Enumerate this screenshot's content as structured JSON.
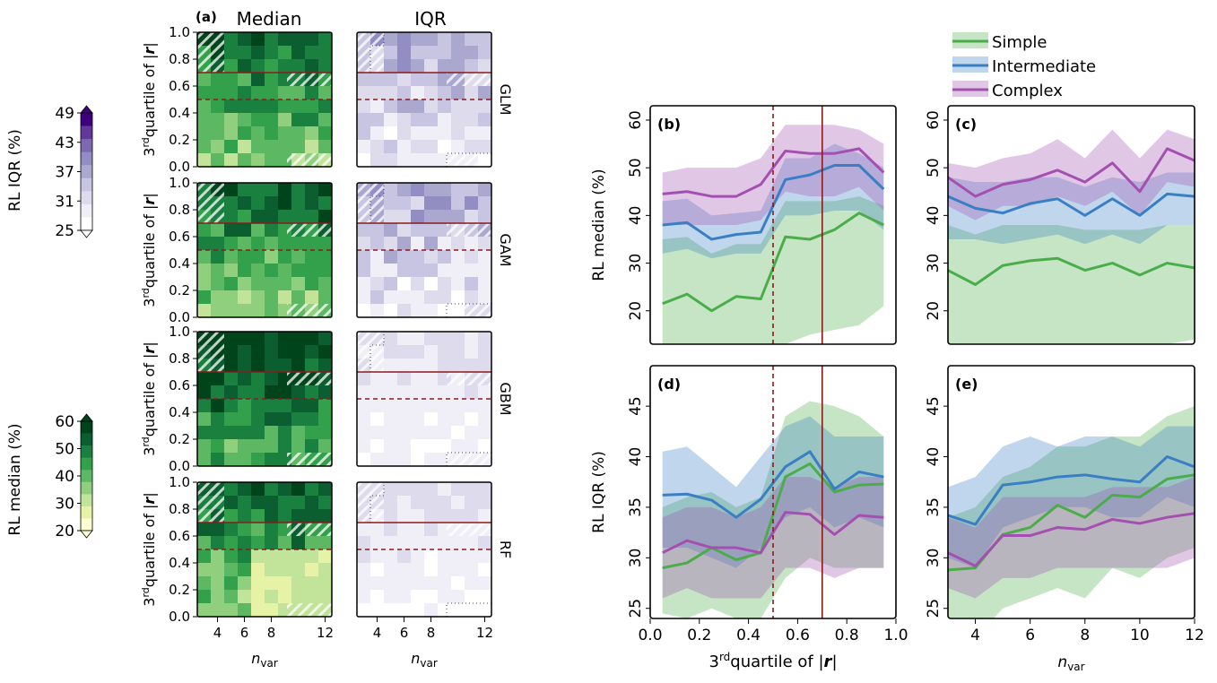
{
  "colors": {
    "simple": "#4aad4a",
    "intermediate": "#3a7fc4",
    "complex": "#a350b0",
    "threshold": "#8b1a1a",
    "median_scale": [
      "#fefed2",
      "#e6f3a6",
      "#c2e39a",
      "#8fcf7e",
      "#5cb863",
      "#33a04b",
      "#1a8040",
      "#0b5e2f",
      "#00441b"
    ],
    "iqr_scale": [
      "#ffffff",
      "#f0eff7",
      "#dedcec",
      "#c7c5e1",
      "#aba8d0",
      "#928dc2",
      "#7b6ab0",
      "#62389a",
      "#3f007d"
    ]
  },
  "heatmaps": {
    "panel_label": "(a)",
    "col_titles": [
      "Median",
      "IQR"
    ],
    "ylabel_sup": "rd",
    "ylabel_pre": "3",
    "ylabel_main": "quartile of |",
    "ylabel_r": "r",
    "ylabel_end": "|",
    "xlabel": "n",
    "xlabel_sub": "var",
    "xticks": [
      "4",
      "6",
      "8",
      "12"
    ],
    "yticks": [
      "0.0",
      "0.2",
      "0.4",
      "0.6",
      "0.8",
      "1.0"
    ],
    "models": [
      "GLM",
      "GAM",
      "GBM",
      "RF"
    ],
    "solid_line_y": 0.7,
    "dashed_line_y": 0.5
  },
  "colorbars": {
    "iqr": {
      "label": "RL IQR (%)",
      "ticks": [
        "49",
        "43",
        "37",
        "31",
        "25"
      ]
    },
    "median": {
      "label": "RL median (%)",
      "ticks": [
        "60",
        "50",
        "40",
        "30",
        "20"
      ]
    }
  },
  "legend": {
    "entries": [
      "Simple",
      "Intermediate",
      "Complex"
    ],
    "placement": "top-center"
  },
  "chart_data": [
    {
      "panel": "(b)",
      "type": "area",
      "xlim": [
        0,
        1.0
      ],
      "ylim": [
        13,
        63
      ],
      "yticks": [
        "20",
        "30",
        "40",
        "50",
        "60"
      ],
      "ylabel": "RL median (%)",
      "vlines": {
        "dashed": 0.5,
        "solid": 0.7
      },
      "x": [
        0.05,
        0.15,
        0.25,
        0.35,
        0.45,
        0.55,
        0.65,
        0.75,
        0.85,
        0.95
      ],
      "series": [
        {
          "name": "Simple",
          "values": [
            21.5,
            23.5,
            20,
            23,
            22.5,
            35.5,
            35,
            37,
            40.5,
            38
          ],
          "lower": [
            10,
            10,
            10,
            10,
            10,
            13,
            15,
            16,
            17,
            21
          ],
          "upper": [
            35,
            35.5,
            32,
            34,
            34,
            43,
            43,
            43,
            44,
            42
          ]
        },
        {
          "name": "Intermediate",
          "values": [
            38,
            38.5,
            35,
            36,
            36.5,
            47.5,
            48.5,
            50.5,
            50.5,
            45.5
          ],
          "lower": [
            32,
            33,
            31,
            32,
            32,
            40,
            40,
            41,
            41,
            37
          ],
          "upper": [
            43,
            43.5,
            40,
            40.5,
            41,
            52,
            52,
            55,
            53,
            50
          ]
        },
        {
          "name": "Complex",
          "values": [
            44.5,
            45,
            44,
            44,
            46.5,
            53.5,
            53,
            53,
            54,
            49
          ],
          "lower": [
            38,
            38,
            38,
            38,
            39,
            45,
            44,
            44,
            46,
            41
          ],
          "upper": [
            49,
            50,
            50,
            50,
            52,
            59,
            59,
            59,
            58,
            55
          ]
        }
      ]
    },
    {
      "panel": "(c)",
      "type": "area",
      "xlim": [
        3,
        12
      ],
      "ylim": [
        13,
        63
      ],
      "yticks": [
        "20",
        "30",
        "40",
        "50",
        "60"
      ],
      "x": [
        3,
        4,
        5,
        6,
        7,
        8,
        9,
        10,
        11,
        12
      ],
      "series": [
        {
          "name": "Simple",
          "values": [
            28.5,
            25.5,
            29.5,
            30.5,
            31,
            28.5,
            30,
            27.5,
            30,
            29
          ],
          "lower": [
            10,
            10,
            10,
            10,
            10,
            10,
            10,
            10,
            13,
            14
          ],
          "upper": [
            38,
            36,
            38,
            38,
            38,
            37,
            37,
            37,
            38,
            38
          ]
        },
        {
          "name": "Intermediate",
          "values": [
            44,
            41.5,
            40.5,
            42.5,
            43.5,
            40,
            43.5,
            40,
            44.5,
            44
          ],
          "lower": [
            35,
            35,
            34,
            35,
            36,
            34,
            36,
            34,
            38,
            38
          ],
          "upper": [
            48,
            47,
            47,
            48,
            48,
            46,
            48,
            47,
            49,
            49
          ]
        },
        {
          "name": "Complex",
          "values": [
            48,
            44,
            46.5,
            47.5,
            49.5,
            47,
            51,
            45,
            54,
            51.5
          ],
          "lower": [
            42,
            39,
            42,
            42,
            44,
            42,
            45,
            40,
            47,
            46
          ],
          "upper": [
            51,
            50,
            52,
            53,
            56,
            52,
            58,
            52,
            58,
            56
          ]
        }
      ]
    },
    {
      "panel": "(d)",
      "type": "area",
      "xlim": [
        0,
        1.0
      ],
      "ylim": [
        24,
        49
      ],
      "yticks": [
        "25",
        "30",
        "35",
        "40",
        "45"
      ],
      "xticks": [
        "0.0",
        "0.2",
        "0.4",
        "0.6",
        "0.8",
        "1.0"
      ],
      "ylabel": "RL IQR (%)",
      "xlabel_pre": "3",
      "xlabel_sup": "rd",
      "xlabel_main": "quartile of  |",
      "xlabel_r": "r",
      "xlabel_end": "|",
      "vlines": {
        "dashed": 0.5,
        "solid": 0.7
      },
      "x": [
        0.05,
        0.15,
        0.25,
        0.35,
        0.45,
        0.55,
        0.65,
        0.75,
        0.85,
        0.95
      ],
      "series": [
        {
          "name": "Simple",
          "values": [
            29,
            29.5,
            31,
            29.8,
            30.5,
            38,
            39.3,
            36.5,
            37.2,
            37.3
          ],
          "lower": [
            24.5,
            24,
            25,
            24,
            24,
            28,
            30,
            29,
            29,
            29
          ],
          "upper": [
            35,
            36,
            36.5,
            35,
            36,
            44,
            45.5,
            45,
            44,
            42
          ]
        },
        {
          "name": "Intermediate",
          "values": [
            36.2,
            36.3,
            35.7,
            34,
            35.8,
            39,
            40.5,
            36.8,
            38.5,
            38
          ],
          "lower": [
            31,
            31,
            30,
            29,
            31,
            34,
            35,
            33,
            34,
            33
          ],
          "upper": [
            40.5,
            41,
            39,
            37,
            40,
            43,
            44,
            42,
            42,
            42
          ]
        },
        {
          "name": "Complex",
          "values": [
            30.5,
            31.7,
            31,
            31,
            30.5,
            34.5,
            34.3,
            32.3,
            34.2,
            34
          ],
          "lower": [
            26,
            27,
            26,
            26,
            26,
            29,
            29,
            28,
            29,
            29
          ],
          "upper": [
            34,
            35,
            35,
            34,
            35,
            38,
            38,
            37,
            38,
            38
          ]
        }
      ]
    },
    {
      "panel": "(e)",
      "type": "area",
      "xlim": [
        3,
        12
      ],
      "ylim": [
        24,
        49
      ],
      "yticks": [
        "25",
        "30",
        "35",
        "40",
        "45"
      ],
      "xticks": [
        "4",
        "6",
        "8",
        "10",
        "12"
      ],
      "xlabel": "n",
      "xlabel_sub": "var",
      "x": [
        3,
        4,
        5,
        6,
        7,
        8,
        9,
        10,
        11,
        12
      ],
      "series": [
        {
          "name": "Simple",
          "values": [
            28.8,
            29,
            32.3,
            33,
            35.2,
            34,
            36.2,
            36,
            37.8,
            38.2
          ],
          "lower": [
            24,
            22,
            25,
            26,
            27,
            26,
            29,
            28,
            30,
            31
          ],
          "upper": [
            34,
            35,
            38,
            39,
            41,
            41,
            42,
            42,
            44,
            45
          ]
        },
        {
          "name": "Intermediate",
          "values": [
            34.2,
            33.3,
            37.2,
            37.5,
            38,
            38.2,
            37.8,
            37.5,
            40,
            39
          ],
          "lower": [
            30,
            29,
            33,
            34,
            35,
            35,
            34,
            34,
            36,
            35
          ],
          "upper": [
            37,
            38,
            41,
            42,
            41,
            42,
            42,
            41,
            43,
            43
          ]
        },
        {
          "name": "Complex",
          "values": [
            30.5,
            29.2,
            32.2,
            32.2,
            33,
            32.8,
            33.8,
            33.4,
            34,
            34.4
          ],
          "lower": [
            27,
            26,
            28,
            28,
            29,
            29,
            29,
            29,
            29,
            30
          ],
          "upper": [
            34,
            33,
            36,
            36,
            36,
            36,
            37,
            37,
            37,
            38
          ]
        }
      ]
    }
  ]
}
